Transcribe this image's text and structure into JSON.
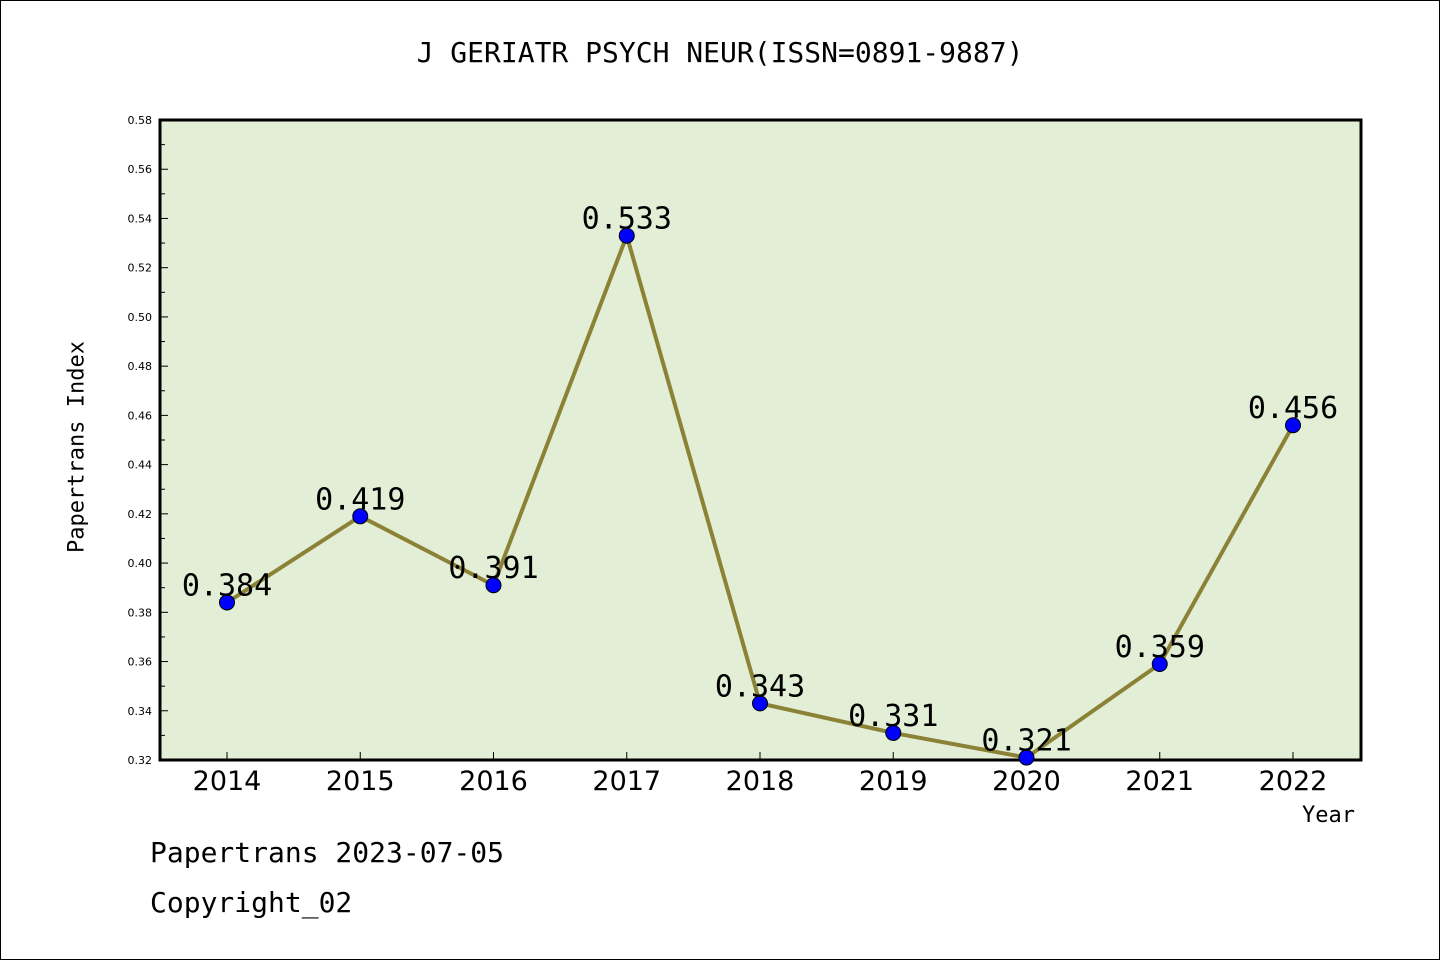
{
  "chart_data": {
    "type": "line",
    "title": "J GERIATR PSYCH NEUR(ISSN=0891-9887)",
    "xlabel": "Year",
    "ylabel": "Papertrans Index",
    "categories": [
      "2014",
      "2015",
      "2016",
      "2017",
      "2018",
      "2019",
      "2020",
      "2021",
      "2022"
    ],
    "series": [
      {
        "values": [
          0.384,
          0.419,
          0.391,
          0.533,
          0.343,
          0.331,
          0.321,
          0.359,
          0.456
        ]
      }
    ],
    "data_labels": [
      "0.384",
      "0.419",
      "0.391",
      "0.533",
      "0.343",
      "0.331",
      "0.321",
      "0.359",
      "0.456"
    ],
    "ylim": [
      0.32,
      0.58
    ],
    "yticks": [
      "0.32",
      "0.34",
      "0.36",
      "0.38",
      "0.40",
      "0.42",
      "0.44",
      "0.46",
      "0.48",
      "0.50",
      "0.52",
      "0.54",
      "0.56",
      "0.58"
    ],
    "grid": false,
    "legend": "none",
    "colors": {
      "plot_background": "#e2efd6",
      "line": "#8b8236",
      "marker": "#0000ff"
    }
  },
  "footer": {
    "line1": "Papertrans 2023-07-05",
    "line2": "Copyright_02"
  }
}
